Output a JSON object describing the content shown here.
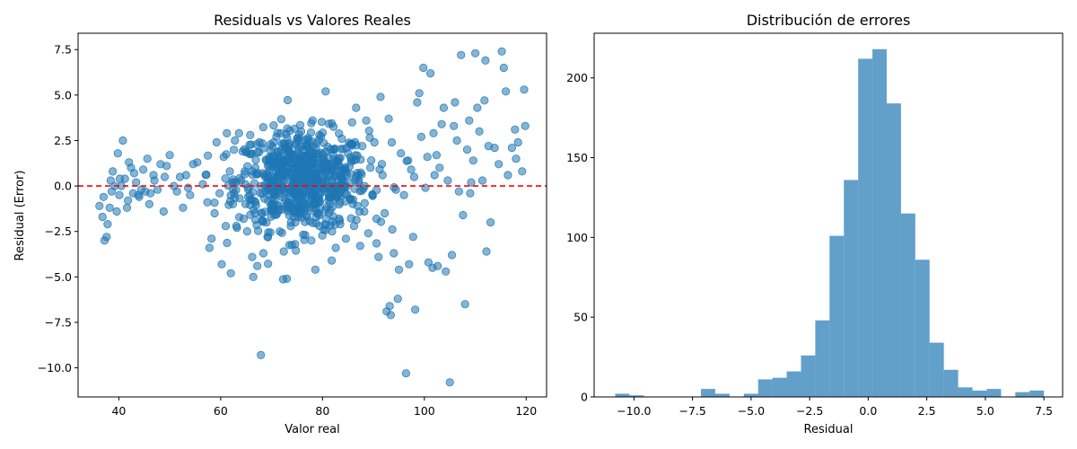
{
  "chart_data": [
    {
      "type": "scatter",
      "title": "Residuals vs Valores Reales",
      "xlabel": "Valor real",
      "ylabel": "Residual (Error)",
      "xlim": [
        32,
        124
      ],
      "ylim": [
        -11.6,
        8.4
      ],
      "xticks": [
        40,
        60,
        80,
        100,
        120
      ],
      "yticks": [
        -10.0,
        -7.5,
        -5.0,
        -2.5,
        0.0,
        2.5,
        5.0,
        7.5
      ],
      "ytick_labels": [
        "−10.0",
        "−7.5",
        "−5.0",
        "−2.5",
        "0.0",
        "2.5",
        "5.0",
        "7.5"
      ],
      "point_color": "#1f77b4",
      "point_alpha": 0.55,
      "reference_line": {
        "y": 0,
        "color": "#ff0000",
        "style": "dashed"
      },
      "grid": false,
      "points": [
        [
          37.2,
          -3.0
        ],
        [
          37.6,
          -2.8
        ],
        [
          36.8,
          -1.7
        ],
        [
          38.2,
          -1.2
        ],
        [
          37.0,
          -0.6
        ],
        [
          38.6,
          -0.3
        ],
        [
          39.2,
          0.0
        ],
        [
          38.4,
          0.3
        ],
        [
          40.1,
          -0.5
        ],
        [
          39.6,
          -1.4
        ],
        [
          39.8,
          1.8
        ],
        [
          40.8,
          2.5
        ],
        [
          41.2,
          0.4
        ],
        [
          42.0,
          1.3
        ],
        [
          41.6,
          -1.2
        ],
        [
          42.8,
          -0.4
        ],
        [
          43.4,
          0.2
        ],
        [
          44.0,
          -0.6
        ],
        [
          44.8,
          0.9
        ],
        [
          45.6,
          1.5
        ],
        [
          46.2,
          -0.4
        ],
        [
          46.8,
          0.6
        ],
        [
          47.6,
          -0.2
        ],
        [
          48.2,
          1.2
        ],
        [
          48.8,
          -1.4
        ],
        [
          49.4,
          1.1
        ],
        [
          50.0,
          1.7
        ],
        [
          50.8,
          0.0
        ],
        [
          52.0,
          0.5
        ],
        [
          52.6,
          -1.2
        ],
        [
          53.2,
          0.6
        ],
        [
          54.0,
          -0.5
        ],
        [
          54.6,
          1.2
        ],
        [
          55.4,
          1.3
        ],
        [
          36.2,
          -1.1
        ],
        [
          38.8,
          0.8
        ],
        [
          40.5,
          0.0
        ],
        [
          41.8,
          -0.8
        ],
        [
          43.0,
          0.7
        ],
        [
          44.4,
          -0.2
        ],
        [
          45.2,
          -0.3
        ],
        [
          47.0,
          0.3
        ],
        [
          49.0,
          0.5
        ],
        [
          51.4,
          -0.3
        ],
        [
          53.6,
          -0.1
        ],
        [
          42.4,
          1.0
        ],
        [
          46.0,
          -1.0
        ],
        [
          37.8,
          -2.1
        ],
        [
          40.2,
          0.4
        ],
        [
          43.8,
          -0.5
        ],
        [
          56.5,
          0.1
        ],
        [
          57.4,
          -0.9
        ],
        [
          57.8,
          -3.4
        ],
        [
          58.2,
          -2.9
        ],
        [
          58.8,
          -1.5
        ],
        [
          59.2,
          2.4
        ],
        [
          59.8,
          -0.4
        ],
        [
          60.2,
          -4.3
        ],
        [
          60.6,
          1.6
        ],
        [
          61.0,
          -2.2
        ],
        [
          61.2,
          2.9
        ],
        [
          61.8,
          0.8
        ],
        [
          62.0,
          -4.8
        ],
        [
          62.4,
          -1.0
        ],
        [
          62.8,
          2.5
        ],
        [
          63.2,
          -2.3
        ],
        [
          63.6,
          2.9
        ],
        [
          64.0,
          0.3
        ],
        [
          64.5,
          -1.8
        ],
        [
          65.0,
          1.9
        ],
        [
          65.4,
          -0.6
        ],
        [
          65.8,
          2.8
        ],
        [
          66.2,
          -3.9
        ],
        [
          66.4,
          -5.0
        ],
        [
          66.8,
          1.0
        ],
        [
          67.2,
          -4.4
        ],
        [
          67.6,
          2.4
        ],
        [
          67.9,
          -9.3
        ],
        [
          68.2,
          -1.9
        ],
        [
          68.4,
          -3.7
        ],
        [
          68.8,
          0.5
        ],
        [
          69.2,
          -2.8
        ],
        [
          69.6,
          1.5
        ],
        [
          70.0,
          -1.0
        ],
        [
          70.4,
          2.4
        ],
        [
          70.8,
          -0.3
        ],
        [
          71.2,
          1.9
        ],
        [
          71.6,
          -2.5
        ],
        [
          72.0,
          0.7
        ],
        [
          72.4,
          -3.6
        ],
        [
          72.8,
          2.1
        ],
        [
          73.0,
          -5.1
        ],
        [
          73.4,
          1.3
        ],
        [
          73.8,
          -2.0
        ],
        [
          74.2,
          0.2
        ],
        [
          74.6,
          -3.2
        ],
        [
          75.0,
          1.8
        ],
        [
          75.4,
          -1.1
        ],
        [
          75.8,
          3.0
        ],
        [
          76.2,
          -0.5
        ],
        [
          76.6,
          -2.7
        ],
        [
          77.0,
          2.3
        ],
        [
          77.4,
          0.4
        ],
        [
          77.8,
          -3.0
        ],
        [
          78.2,
          1.6
        ],
        [
          78.6,
          -4.6
        ],
        [
          79.0,
          -1.5
        ],
        [
          79.4,
          2.8
        ],
        [
          79.8,
          0.9
        ],
        [
          80.2,
          -2.4
        ],
        [
          80.6,
          5.2
        ],
        [
          81.0,
          1.2
        ],
        [
          81.4,
          -0.6
        ],
        [
          81.8,
          -4.1
        ],
        [
          82.2,
          2.0
        ],
        [
          82.6,
          -3.4
        ],
        [
          83.0,
          1.4
        ],
        [
          83.4,
          -1.9
        ],
        [
          83.8,
          2.6
        ],
        [
          84.2,
          0.0
        ],
        [
          84.6,
          -2.9
        ],
        [
          85.0,
          1.8
        ],
        [
          85.4,
          -0.7
        ],
        [
          85.8,
          3.5
        ],
        [
          86.2,
          -2.2
        ],
        [
          86.6,
          4.3
        ],
        [
          87.0,
          0.6
        ],
        [
          87.4,
          -3.3
        ],
        [
          87.8,
          2.2
        ],
        [
          88.2,
          -1.4
        ],
        [
          88.6,
          3.6
        ],
        [
          89.0,
          -2.6
        ],
        [
          89.4,
          1.0
        ],
        [
          89.8,
          -0.5
        ],
        [
          90.2,
          2.4
        ],
        [
          90.6,
          -1.8
        ],
        [
          91.0,
          -3.9
        ],
        [
          91.4,
          4.9
        ],
        [
          91.8,
          0.6
        ],
        [
          92.2,
          -1.5
        ],
        [
          92.6,
          -6.9
        ],
        [
          93.0,
          3.7
        ],
        [
          93.2,
          -6.6
        ],
        [
          93.4,
          -7.1
        ],
        [
          93.6,
          2.4
        ],
        [
          94.0,
          -3.7
        ],
        [
          94.4,
          -0.2
        ],
        [
          94.8,
          -6.2
        ],
        [
          95.0,
          -4.6
        ],
        [
          95.4,
          1.8
        ],
        [
          96.0,
          -0.5
        ],
        [
          96.4,
          -10.3
        ],
        [
          97.0,
          -4.3
        ],
        [
          97.4,
          0.9
        ],
        [
          97.8,
          -2.8
        ],
        [
          98.2,
          -6.8
        ],
        [
          98.6,
          4.6
        ],
        [
          99.0,
          5.1
        ],
        [
          99.4,
          2.7
        ],
        [
          99.8,
          6.5
        ],
        [
          100.2,
          -0.1
        ],
        [
          100.8,
          -4.2
        ],
        [
          101.2,
          6.2
        ],
        [
          101.6,
          -4.5
        ],
        [
          102.0,
          0.6
        ],
        [
          102.6,
          -4.4
        ],
        [
          103.0,
          1.0
        ],
        [
          103.4,
          3.4
        ],
        [
          103.8,
          4.3
        ],
        [
          104.2,
          -4.7
        ],
        [
          104.6,
          0.3
        ],
        [
          105.0,
          -10.8
        ],
        [
          105.4,
          -3.8
        ],
        [
          106.0,
          4.6
        ],
        [
          106.4,
          2.5
        ],
        [
          106.8,
          -0.3
        ],
        [
          107.2,
          7.2
        ],
        [
          107.6,
          -1.6
        ],
        [
          108.0,
          -6.5
        ],
        [
          108.4,
          2.0
        ],
        [
          108.8,
          3.6
        ],
        [
          109.2,
          0.2
        ],
        [
          109.6,
          1.4
        ],
        [
          110.0,
          7.3
        ],
        [
          110.4,
          4.3
        ],
        [
          110.8,
          3.0
        ],
        [
          111.4,
          0.3
        ],
        [
          111.8,
          4.7
        ],
        [
          112.0,
          6.9
        ],
        [
          112.2,
          -3.6
        ],
        [
          112.6,
          2.2
        ],
        [
          113.0,
          -2.0
        ],
        [
          113.8,
          2.1
        ],
        [
          114.6,
          1.2
        ],
        [
          115.2,
          7.4
        ],
        [
          115.6,
          6.5
        ],
        [
          116.0,
          5.2
        ],
        [
          116.4,
          0.6
        ],
        [
          117.2,
          2.1
        ],
        [
          117.8,
          3.1
        ],
        [
          118.4,
          2.4
        ],
        [
          119.2,
          0.8
        ],
        [
          119.6,
          5.3
        ],
        [
          119.8,
          3.3
        ],
        [
          118.0,
          1.5
        ],
        [
          109.0,
          -0.4
        ],
        [
          105.8,
          3.3
        ],
        [
          100.6,
          1.6
        ],
        [
          101.8,
          2.9
        ],
        [
          102.4,
          1.7
        ],
        [
          98.0,
          0.5
        ],
        [
          96.8,
          1.4
        ]
      ],
      "dense_cluster": {
        "x_mean": 76.0,
        "x_sd": 6.5,
        "y_mean": 0.3,
        "y_sd": 1.35,
        "count": 700
      }
    },
    {
      "type": "bar",
      "subtype": "histogram",
      "title": "Distribución de errores",
      "xlabel": "Residual",
      "ylabel": "",
      "xlim": [
        -11.7,
        8.3
      ],
      "ylim": [
        0,
        228
      ],
      "xticks": [
        -10.0,
        -7.5,
        -5.0,
        -2.5,
        0.0,
        2.5,
        5.0,
        7.5
      ],
      "xtick_labels": [
        "−10.0",
        "−7.5",
        "−5.0",
        "−2.5",
        "0.0",
        "2.5",
        "5.0",
        "7.5"
      ],
      "yticks": [
        0,
        50,
        100,
        150,
        200
      ],
      "bar_color": "#1f77b4",
      "bar_alpha": 0.7,
      "grid": false,
      "bin_start": -10.8,
      "bin_width": 0.61,
      "counts": [
        2,
        1,
        0,
        0,
        0,
        0,
        5,
        2,
        0,
        2,
        11,
        12,
        16,
        26,
        48,
        101,
        136,
        212,
        218,
        184,
        115,
        86,
        34,
        17,
        6,
        4,
        5,
        0,
        3,
        4
      ]
    }
  ]
}
